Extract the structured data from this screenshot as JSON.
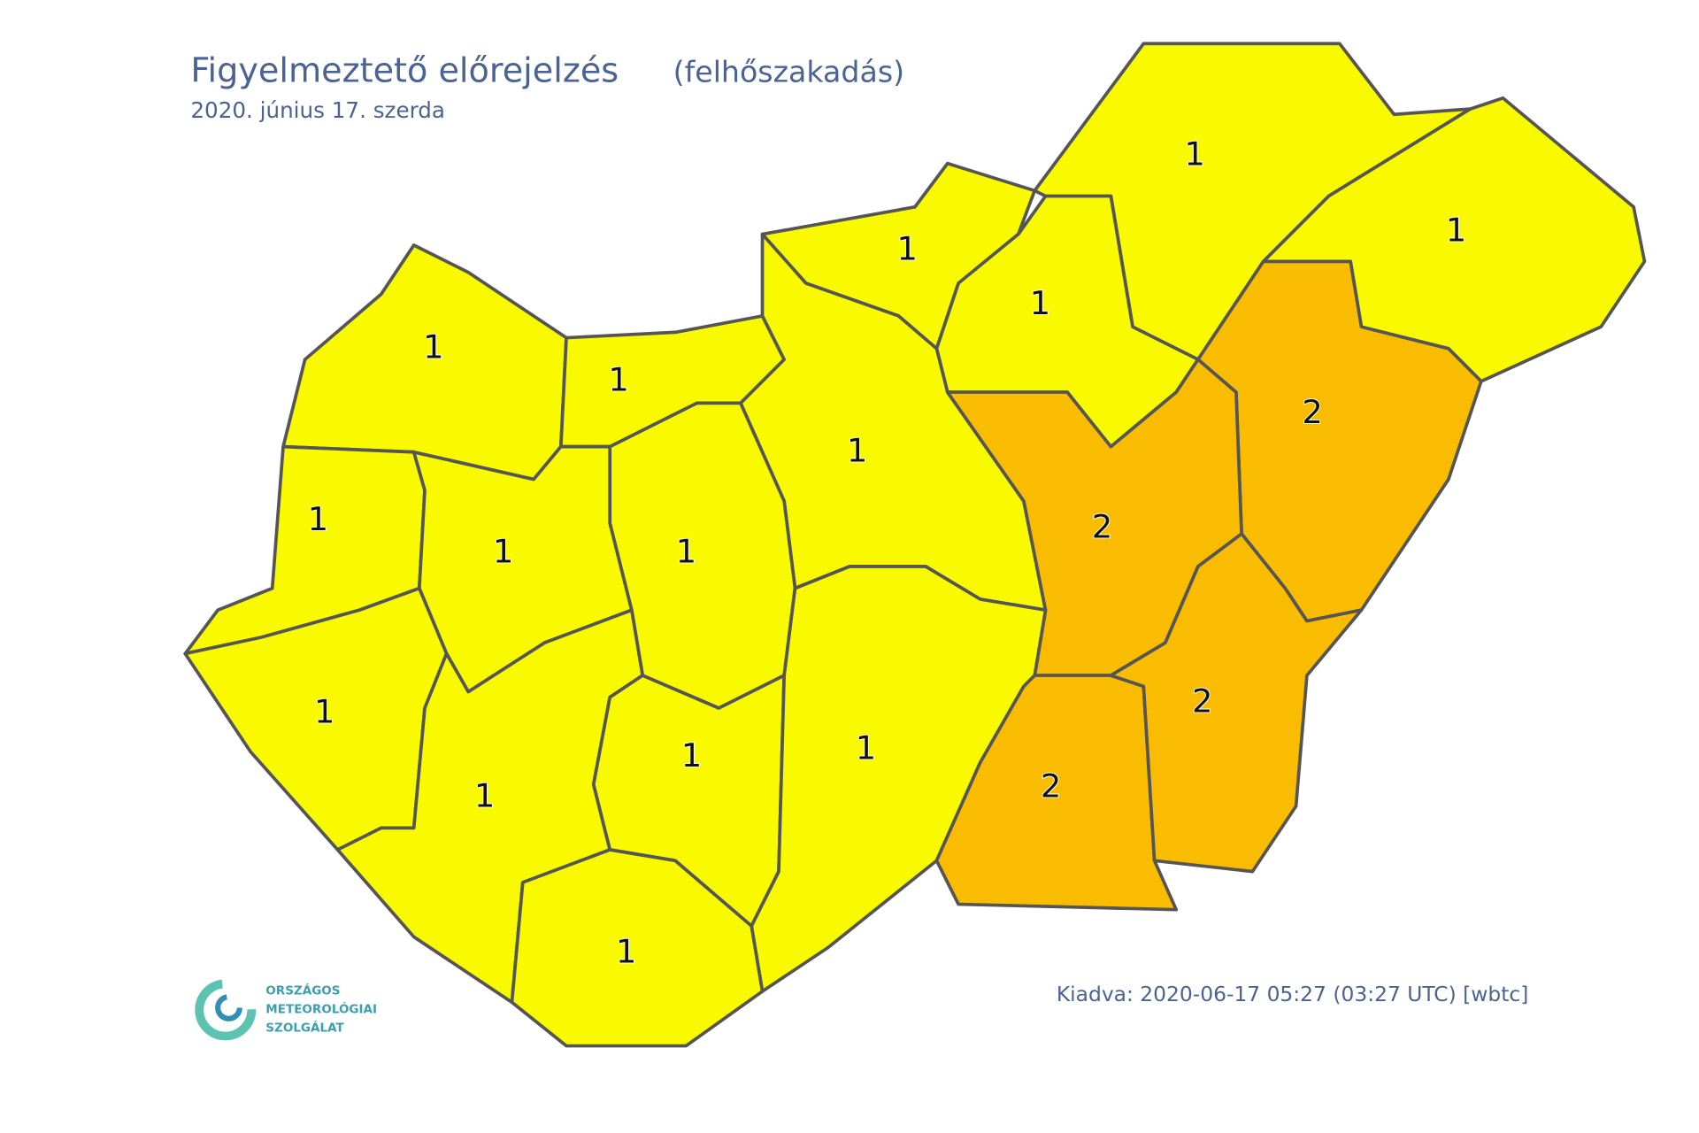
{
  "header": {
    "title": "Figyelmeztető előrejelzés",
    "hazard": "(felhőszakadás)",
    "date": "2020. június 17. szerda"
  },
  "level_colors": [
    {
      "level": 1,
      "color": "#f9f900"
    },
    {
      "level": 2,
      "color": "#f9bc00"
    }
  ],
  "regions": [
    {
      "level": 1
    },
    {
      "level": 1
    },
    {
      "level": 1
    },
    {
      "level": 1
    },
    {
      "level": 1
    },
    {
      "level": 1
    },
    {
      "level": 1
    },
    {
      "level": 1
    },
    {
      "level": 1
    },
    {
      "level": 1
    },
    {
      "level": 2
    },
    {
      "level": 2
    },
    {
      "level": 1
    },
    {
      "level": 1
    },
    {
      "level": 1
    },
    {
      "level": 1
    },
    {
      "level": 1
    },
    {
      "level": 2
    },
    {
      "level": 2
    }
  ],
  "logo": {
    "lines": [
      "ORSZÁGOS",
      "METEOROLÓGIAI",
      "SZOLGÁLAT"
    ]
  },
  "footer": {
    "issued": "Kiadva: 2020-06-17 05:27 (03:27 UTC) [wbtc]"
  }
}
